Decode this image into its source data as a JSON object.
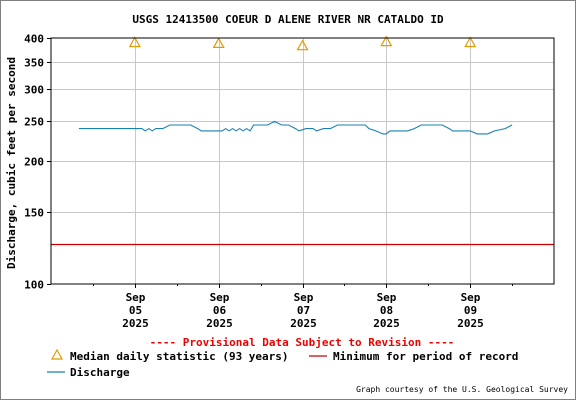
{
  "chart_data": {
    "type": "line",
    "title": "USGS 12413500 COEUR D ALENE RIVER NR CATALDO ID",
    "ylabel": "Discharge, cubic feet per second",
    "yscale": "log",
    "ylim": [
      100,
      400
    ],
    "y_ticks": [
      100,
      150,
      200,
      250,
      300,
      350,
      400
    ],
    "xlim": [
      "2025-09-04 00:00",
      "2025-09-10 00:00"
    ],
    "x_ticks": [
      {
        "date": "2025-09-05 00:00",
        "lines": [
          "Sep",
          "05",
          "2025"
        ]
      },
      {
        "date": "2025-09-06 00:00",
        "lines": [
          "Sep",
          "06",
          "2025"
        ]
      },
      {
        "date": "2025-09-07 00:00",
        "lines": [
          "Sep",
          "07",
          "2025"
        ]
      },
      {
        "date": "2025-09-08 00:00",
        "lines": [
          "Sep",
          "08",
          "2025"
        ]
      },
      {
        "date": "2025-09-09 00:00",
        "lines": [
          "Sep",
          "09",
          "2025"
        ]
      }
    ],
    "grid": true,
    "series": [
      {
        "name": "Discharge",
        "color": "#1a7fb5",
        "points": [
          [
            "2025-09-04 08:00",
            240
          ],
          [
            "2025-09-05 02:00",
            240
          ],
          [
            "2025-09-05 03:00",
            237
          ],
          [
            "2025-09-05 04:00",
            240
          ],
          [
            "2025-09-05 05:00",
            237
          ],
          [
            "2025-09-05 06:00",
            240
          ],
          [
            "2025-09-05 08:00",
            240
          ],
          [
            "2025-09-05 10:00",
            245
          ],
          [
            "2025-09-05 16:00",
            245
          ],
          [
            "2025-09-05 18:00",
            240
          ],
          [
            "2025-09-05 19:00",
            237
          ],
          [
            "2025-09-05 20:00",
            237
          ],
          [
            "2025-09-06 01:00",
            237
          ],
          [
            "2025-09-06 02:00",
            240
          ],
          [
            "2025-09-06 03:00",
            237
          ],
          [
            "2025-09-06 04:00",
            240
          ],
          [
            "2025-09-06 05:00",
            237
          ],
          [
            "2025-09-06 06:00",
            240
          ],
          [
            "2025-09-06 07:00",
            237
          ],
          [
            "2025-09-06 08:00",
            240
          ],
          [
            "2025-09-06 09:00",
            237
          ],
          [
            "2025-09-06 10:00",
            245
          ],
          [
            "2025-09-06 14:00",
            245
          ],
          [
            "2025-09-06 16:00",
            250
          ],
          [
            "2025-09-06 18:00",
            245
          ],
          [
            "2025-09-06 20:00",
            245
          ],
          [
            "2025-09-06 22:00",
            240
          ],
          [
            "2025-09-06 23:00",
            237
          ],
          [
            "2025-09-07 01:00",
            240
          ],
          [
            "2025-09-07 03:00",
            240
          ],
          [
            "2025-09-07 04:00",
            237
          ],
          [
            "2025-09-07 06:00",
            240
          ],
          [
            "2025-09-07 08:00",
            240
          ],
          [
            "2025-09-07 10:00",
            245
          ],
          [
            "2025-09-07 18:00",
            245
          ],
          [
            "2025-09-07 19:00",
            240
          ],
          [
            "2025-09-07 21:00",
            237
          ],
          [
            "2025-09-07 23:00",
            233
          ],
          [
            "2025-09-08 00:00",
            233
          ],
          [
            "2025-09-08 01:00",
            237
          ],
          [
            "2025-09-08 06:00",
            237
          ],
          [
            "2025-09-08 08:00",
            240
          ],
          [
            "2025-09-08 10:00",
            245
          ],
          [
            "2025-09-08 16:00",
            245
          ],
          [
            "2025-09-08 18:00",
            240
          ],
          [
            "2025-09-08 19:00",
            237
          ],
          [
            "2025-09-09 00:00",
            237
          ],
          [
            "2025-09-09 02:00",
            233
          ],
          [
            "2025-09-09 05:00",
            233
          ],
          [
            "2025-09-09 07:00",
            237
          ],
          [
            "2025-09-09 10:00",
            240
          ],
          [
            "2025-09-09 12:00",
            245
          ]
        ]
      },
      {
        "name": "Minimum for period of record",
        "color": "#cc0000",
        "value": 125
      },
      {
        "name": "Median daily statistic (93 years)",
        "color": "#e39b00",
        "points": [
          [
            "2025-09-05 00:00",
            390
          ],
          [
            "2025-09-06 00:00",
            388
          ],
          [
            "2025-09-07 00:00",
            383
          ],
          [
            "2025-09-08 00:00",
            392
          ],
          [
            "2025-09-09 00:00",
            390
          ]
        ]
      }
    ]
  },
  "provisional_note": "---- Provisional Data Subject to Revision ----",
  "legend": {
    "median": "Median daily statistic (93 years)",
    "minimum": "Minimum for period of record",
    "discharge": "Discharge"
  },
  "credit": "Graph courtesy of the U.S. Geological Survey"
}
